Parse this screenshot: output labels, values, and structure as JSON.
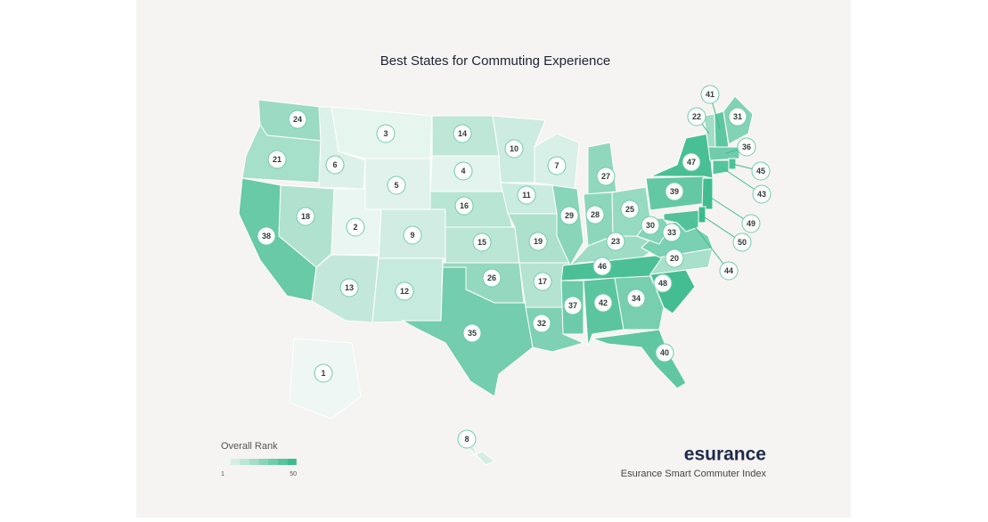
{
  "title": "Best States for Commuting Experience",
  "ranks": [
    24,
    21,
    38,
    18,
    6,
    3,
    5,
    2,
    9,
    13,
    12,
    14,
    4,
    16,
    15,
    26,
    35,
    10,
    11,
    19,
    17,
    32,
    7,
    29,
    27,
    28,
    25,
    23,
    46,
    37,
    42,
    34,
    40,
    48,
    20,
    33,
    30,
    39,
    47,
    22,
    41,
    31,
    36,
    45,
    43,
    49,
    50,
    44,
    1,
    8
  ],
  "color_scale": [
    "#eef7f3",
    "#3dbb8f"
  ],
  "legend": {
    "title": "Overall Rank",
    "range": [
      1,
      50
    ]
  },
  "brand": "esurance",
  "footer": "Esurance Smart Commuter Index"
}
